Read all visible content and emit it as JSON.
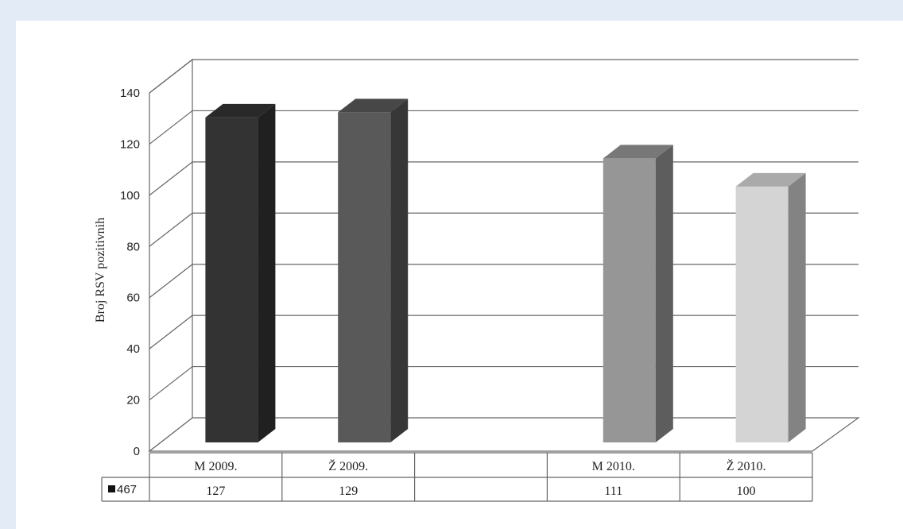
{
  "chart_data": {
    "type": "bar",
    "categories": [
      "M 2009.",
      "Ž 2009.",
      "",
      "M 2010.",
      "Ž 2010."
    ],
    "series": [
      {
        "name": "467",
        "values": [
          127,
          129,
          null,
          111,
          100
        ]
      }
    ],
    "bar_colors": [
      "#333333",
      "#595959",
      "",
      "#969696",
      "#d4d4d4"
    ],
    "ylabel": "Broj RSV pozitivnih",
    "ylim": [
      0,
      140
    ],
    "yticks": [
      "0",
      "20",
      "40",
      "60",
      "80",
      "100",
      "120",
      "140"
    ],
    "table_values": [
      "127",
      "129",
      "",
      "111",
      "100"
    ],
    "legend_label": "467",
    "grid": true,
    "style": "3d-column-with-data-table"
  }
}
